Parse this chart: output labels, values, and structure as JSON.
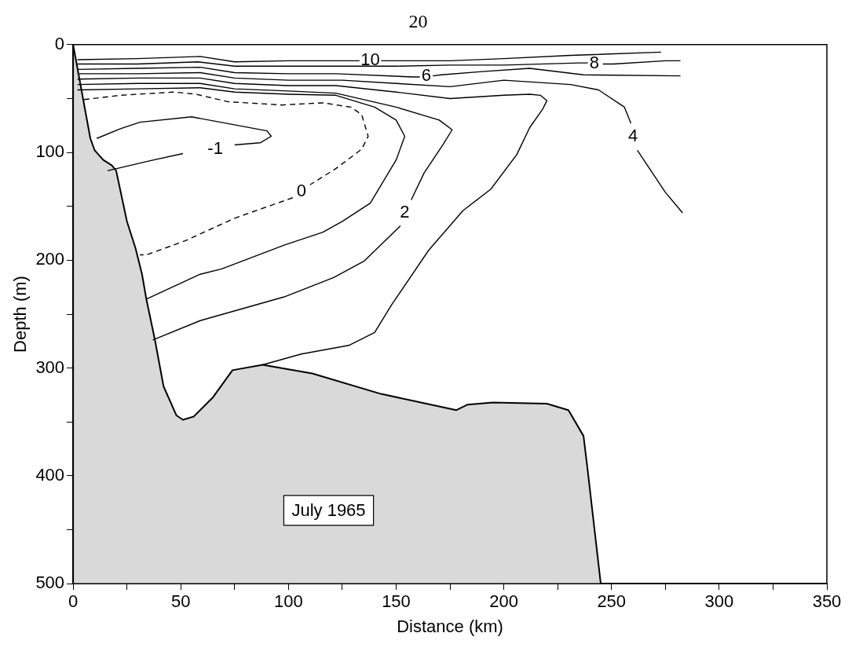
{
  "chart_data": {
    "type": "line",
    "title": "20",
    "xlabel": "Distance (km)",
    "ylabel": "Depth (m)",
    "xlim": [
      0,
      350
    ],
    "ylim": [
      500,
      0
    ],
    "xticks": [
      0,
      {
        "value": 25,
        "label": null
      },
      50,
      {
        "value": 75,
        "label": null
      },
      100,
      {
        "value": 125,
        "label": null
      },
      150,
      {
        "value": 175,
        "label": null
      },
      200,
      {
        "value": 225,
        "label": null
      },
      250,
      {
        "value": 275,
        "label": null
      },
      300,
      {
        "value": 325,
        "label": null
      },
      350
    ],
    "yticks": [
      0,
      {
        "value": 50,
        "label": null
      },
      100,
      {
        "value": 150,
        "label": null
      },
      200,
      {
        "value": 250,
        "label": null
      },
      300,
      {
        "value": 350,
        "label": null
      },
      400,
      {
        "value": 450,
        "label": null
      },
      500
    ],
    "grid": false,
    "legend": false,
    "series": [
      {
        "type": "area",
        "color": "#d9d9d9",
        "x": [
          0,
          0,
          8,
          10,
          14,
          18,
          20,
          25,
          29,
          32,
          34,
          38,
          42,
          48,
          51,
          56,
          65,
          74,
          88,
          111,
          143,
          178,
          183,
          195,
          220,
          230,
          237,
          239,
          245
        ],
        "values": [
          500,
          0,
          87,
          98,
          107,
          112,
          117,
          164,
          189,
          213,
          236,
          274,
          317,
          344,
          348,
          345,
          327,
          302,
          297,
          305,
          324,
          339,
          334,
          332,
          333,
          339,
          363,
          396,
          500
        ]
      },
      {
        "name": "10",
        "color": "#000000",
        "x": [
          2,
          30,
          59,
          75,
          100,
          130,
          133,
          138,
          143,
          147,
          175,
          200,
          231,
          273
        ],
        "values": [
          14,
          13,
          11,
          16,
          15,
          15,
          15,
          null,
          15,
          15,
          15,
          13,
          10,
          7
        ]
      },
      {
        "name": "8",
        "color": "#000000",
        "x": [
          2,
          30,
          58,
          75,
          100,
          125,
          150,
          175,
          200,
          235,
          239,
          242,
          246,
          251,
          275,
          282
        ],
        "values": [
          18,
          18,
          16,
          20,
          20,
          20,
          20,
          19,
          19,
          17,
          17,
          null,
          18,
          18,
          15,
          15
        ]
      },
      {
        "name": "6",
        "color": "#000000",
        "x": [
          2,
          30,
          59,
          75,
          100,
          122,
          158,
          161,
          164,
          167,
          171,
          190,
          212,
          237,
          282
        ],
        "values": [
          23,
          22,
          21,
          26,
          27,
          27,
          30,
          30,
          null,
          29,
          28,
          25,
          22,
          28,
          29
        ]
      },
      {
        "name": "4",
        "color": "#000000",
        "x": [
          2,
          30,
          59,
          75,
          100,
          125,
          150,
          175,
          200,
          231,
          244,
          256,
          259,
          260,
          262,
          275,
          283
        ],
        "values": [
          27,
          27,
          26,
          31,
          33,
          33,
          36,
          39,
          33,
          37,
          42,
          58,
          73,
          null,
          98,
          137,
          156
        ]
      },
      {
        "color": "#000000",
        "x": [
          2,
          30,
          59,
          75,
          100,
          122,
          150,
          175,
          200,
          212,
          217,
          220,
          218,
          212,
          206,
          194,
          181,
          165,
          148,
          140,
          128,
          106,
          88
        ],
        "values": [
          32,
          31,
          31,
          36,
          38,
          38,
          44,
          50,
          47,
          46,
          47,
          52,
          60,
          77,
          102,
          134,
          154,
          191,
          241,
          267,
          279,
          287,
          297
        ]
      },
      {
        "name": "2",
        "color": "#000000",
        "x": [
          2,
          30,
          59,
          75,
          100,
          122,
          150,
          170,
          176,
          172,
          163,
          157,
          154,
          152,
          135,
          121,
          98,
          59,
          37
        ],
        "values": [
          37,
          36,
          36,
          41,
          43,
          45,
          58,
          70,
          79,
          92,
          119,
          144,
          null,
          168,
          201,
          216,
          234,
          256,
          274
        ]
      },
      {
        "color": "#000000",
        "x": [
          2,
          30,
          59,
          75,
          100,
          122,
          140,
          150,
          154,
          150,
          138,
          125,
          116,
          104,
          98,
          69,
          59,
          34
        ],
        "values": [
          42,
          41,
          40,
          44,
          46,
          47,
          58,
          70,
          85,
          107,
          147,
          164,
          174,
          182,
          186,
          208,
          213,
          236
        ]
      },
      {
        "name": "0",
        "color": "#000000",
        "line_style": "dashed",
        "x": [
          5,
          22,
          47,
          57,
          72,
          97,
          116,
          129,
          134,
          137,
          134,
          122,
          110,
          106,
          102,
          75,
          52,
          34,
          31
        ],
        "values": [
          51,
          47,
          44,
          46,
          53,
          56,
          54,
          58,
          65,
          85,
          97,
          115,
          130,
          null,
          142,
          161,
          182,
          195,
          195
        ]
      },
      {
        "name": "-1",
        "color": "#000000",
        "x": [
          11,
          22,
          31,
          55,
          90,
          92,
          87,
          75,
          66,
          51,
          35,
          16
        ],
        "values": [
          87,
          78,
          72,
          67,
          80,
          85,
          91,
          93,
          null,
          101,
          108,
          117
        ]
      }
    ],
    "annotations": [
      "July 1965"
    ]
  }
}
